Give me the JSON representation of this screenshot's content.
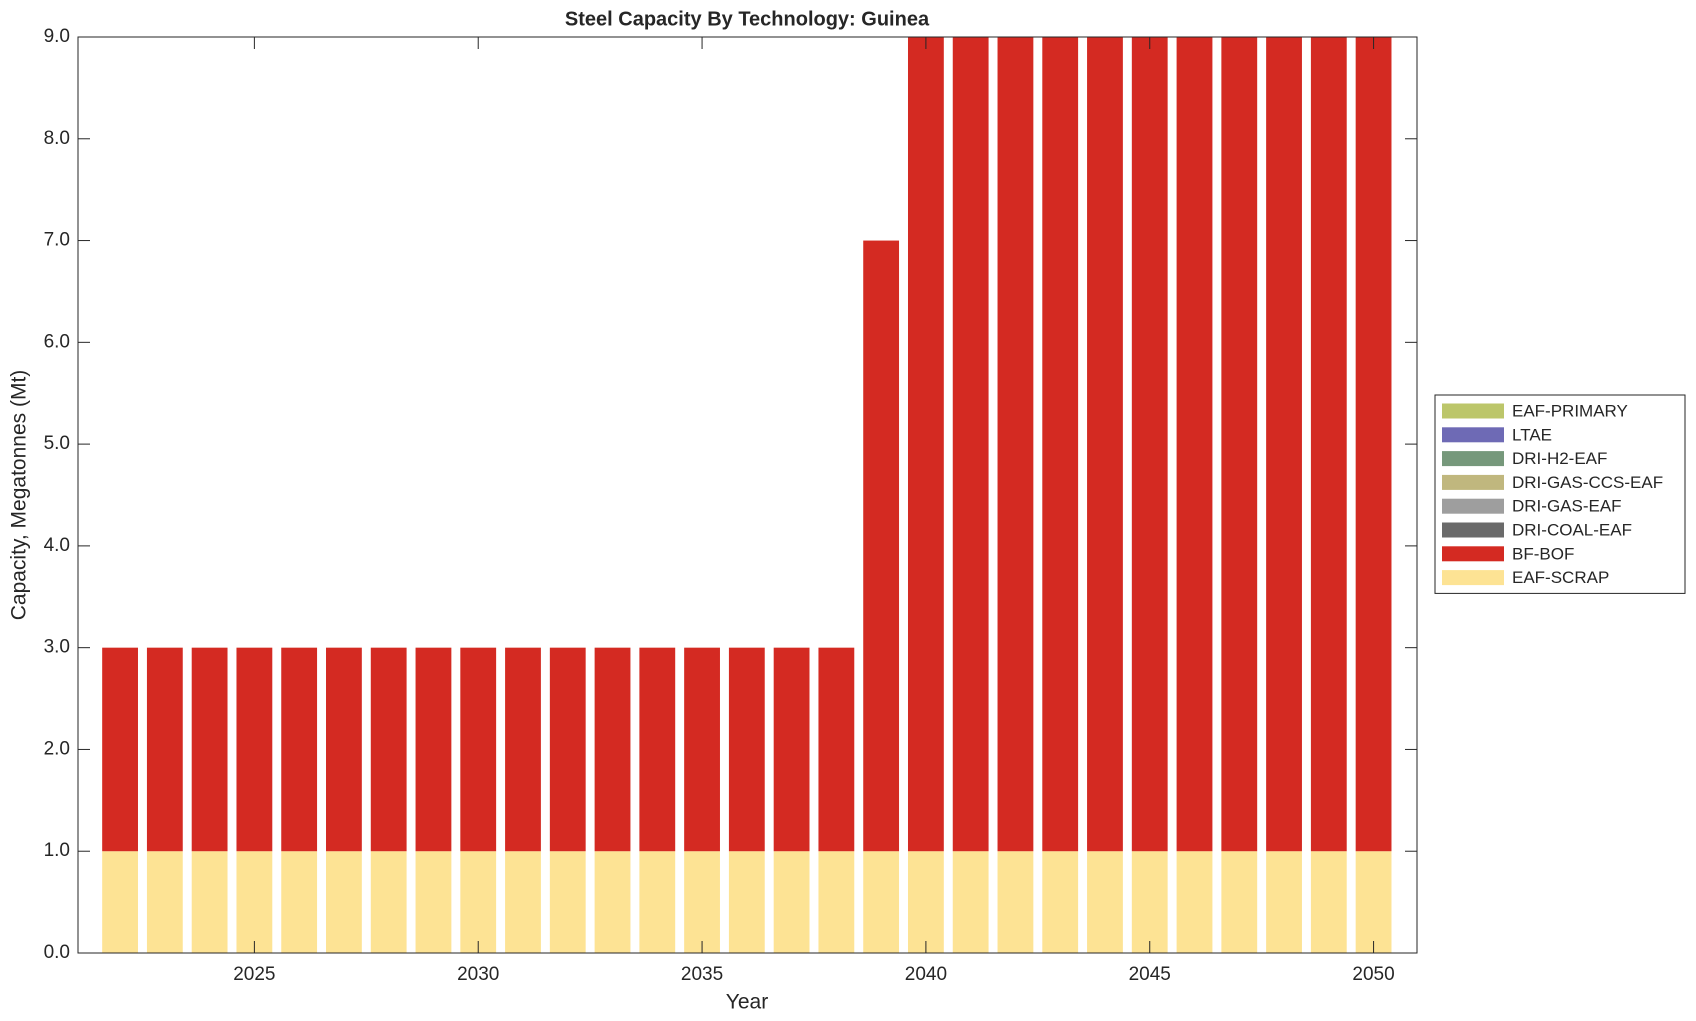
{
  "chart_data": {
    "type": "stacked_bar",
    "title": "Steel Capacity By Technology: Guinea",
    "x_label": "Year",
    "y_label": "Capacity, Megatonnes (Mt)",
    "x": [
      2022,
      2023,
      2024,
      2025,
      2026,
      2027,
      2028,
      2029,
      2030,
      2031,
      2032,
      2033,
      2034,
      2035,
      2036,
      2037,
      2038,
      2039,
      2040,
      2041,
      2042,
      2043,
      2044,
      2045,
      2046,
      2047,
      2048,
      2049,
      2050
    ],
    "series": [
      {
        "name": "EAF-SCRAP",
        "color": "#fde394",
        "values": [
          1,
          1,
          1,
          1,
          1,
          1,
          1,
          1,
          1,
          1,
          1,
          1,
          1,
          1,
          1,
          1,
          1,
          1,
          1,
          1,
          1,
          1,
          1,
          1,
          1,
          1,
          1,
          1,
          1
        ]
      },
      {
        "name": "BF-BOF",
        "color": "#d42a22",
        "values": [
          2,
          2,
          2,
          2,
          2,
          2,
          2,
          2,
          2,
          2,
          2,
          2,
          2,
          2,
          2,
          2,
          2,
          6,
          8,
          8,
          8,
          8,
          8,
          8,
          8,
          8,
          8,
          8,
          8
        ]
      },
      {
        "name": "DRI-COAL-EAF",
        "color": "#6a6a6a",
        "values": [
          0,
          0,
          0,
          0,
          0,
          0,
          0,
          0,
          0,
          0,
          0,
          0,
          0,
          0,
          0,
          0,
          0,
          0,
          0,
          0,
          0,
          0,
          0,
          0,
          0,
          0,
          0,
          0,
          0
        ]
      },
      {
        "name": "DRI-GAS-EAF",
        "color": "#9e9e9e",
        "values": [
          0,
          0,
          0,
          0,
          0,
          0,
          0,
          0,
          0,
          0,
          0,
          0,
          0,
          0,
          0,
          0,
          0,
          0,
          0,
          0,
          0,
          0,
          0,
          0,
          0,
          0,
          0,
          0,
          0
        ]
      },
      {
        "name": "DRI-GAS-CCS-EAF",
        "color": "#c0b77e",
        "values": [
          0,
          0,
          0,
          0,
          0,
          0,
          0,
          0,
          0,
          0,
          0,
          0,
          0,
          0,
          0,
          0,
          0,
          0,
          0,
          0,
          0,
          0,
          0,
          0,
          0,
          0,
          0,
          0,
          0
        ]
      },
      {
        "name": "DRI-H2-EAF",
        "color": "#76987b",
        "values": [
          0,
          0,
          0,
          0,
          0,
          0,
          0,
          0,
          0,
          0,
          0,
          0,
          0,
          0,
          0,
          0,
          0,
          0,
          0,
          0,
          0,
          0,
          0,
          0,
          0,
          0,
          0,
          0,
          0
        ]
      },
      {
        "name": "LTAE",
        "color": "#6e6ab5",
        "values": [
          0,
          0,
          0,
          0,
          0,
          0,
          0,
          0,
          0,
          0,
          0,
          0,
          0,
          0,
          0,
          0,
          0,
          0,
          0,
          0,
          0,
          0,
          0,
          0,
          0,
          0,
          0,
          0,
          0
        ]
      },
      {
        "name": "EAF-PRIMARY",
        "color": "#bcc66a",
        "values": [
          0,
          0,
          0,
          0,
          0,
          0,
          0,
          0,
          0,
          0,
          0,
          0,
          0,
          0,
          0,
          0,
          0,
          0,
          0,
          0,
          0,
          0,
          0,
          0,
          0,
          0,
          0,
          0,
          0
        ]
      }
    ],
    "xlim": [
      2021.06,
      2050.97
    ],
    "xticks": [
      2025,
      2030,
      2035,
      2040,
      2045,
      2050
    ],
    "ylim": [
      0,
      9
    ],
    "yticks": [
      {
        "value": 0,
        "label": "0.0"
      },
      {
        "value": 1,
        "label": "1.0"
      },
      {
        "value": 2,
        "label": "2.0"
      },
      {
        "value": 3,
        "label": "3.0"
      },
      {
        "value": 4,
        "label": "4.0"
      },
      {
        "value": 5,
        "label": "5.0"
      },
      {
        "value": 6,
        "label": "6.0"
      },
      {
        "value": 7,
        "label": "7.0"
      },
      {
        "value": 8,
        "label": "8.0"
      },
      {
        "value": 9,
        "label": "9.0"
      }
    ],
    "legend": "outside-right"
  }
}
